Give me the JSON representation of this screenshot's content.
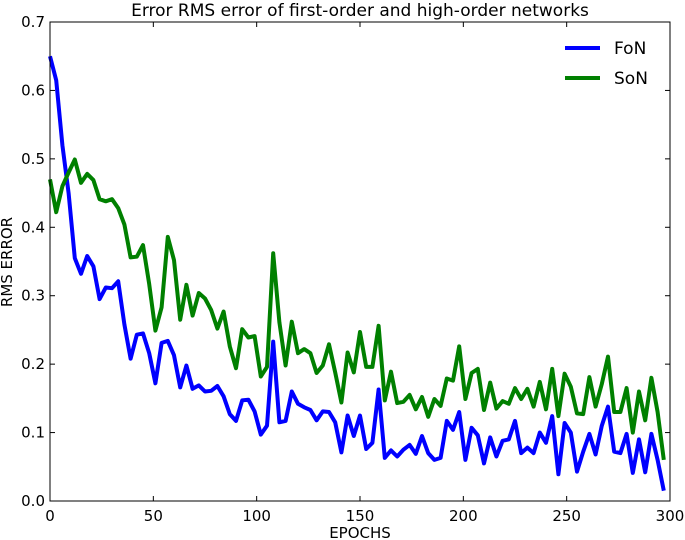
{
  "chart_data": {
    "type": "line",
    "title": "Error RMS error of first-order and high-order networks",
    "xlabel": "EPOCHS",
    "ylabel": "RMS ERROR",
    "xlim": [
      0,
      300
    ],
    "ylim": [
      0,
      0.7
    ],
    "xticks": [
      "0",
      "50",
      "100",
      "150",
      "200",
      "250",
      "300"
    ],
    "yticks": [
      "0.0",
      "0.1",
      "0.2",
      "0.3",
      "0.4",
      "0.5",
      "0.6",
      "0.7"
    ],
    "legend": "top-right",
    "grid": false,
    "x": [
      0,
      3,
      6,
      9,
      12,
      15,
      18,
      21,
      24,
      27,
      30,
      33,
      36,
      39,
      42,
      45,
      48,
      51,
      54,
      57,
      60,
      63,
      66,
      69,
      72,
      75,
      78,
      81,
      84,
      87,
      90,
      93,
      96,
      99,
      102,
      105,
      108,
      111,
      114,
      117,
      120,
      123,
      126,
      129,
      132,
      135,
      138,
      141,
      144,
      147,
      150,
      153,
      156,
      159,
      162,
      165,
      168,
      171,
      174,
      177,
      180,
      183,
      186,
      189,
      192,
      195,
      198,
      201,
      204,
      207,
      210,
      213,
      216,
      219,
      222,
      225,
      228,
      231,
      234,
      237,
      240,
      243,
      246,
      249,
      252,
      255,
      258,
      261,
      264,
      267,
      270,
      273,
      276,
      279,
      282,
      285,
      288,
      291,
      294,
      297
    ],
    "series": [
      {
        "name": "FoN",
        "color": "#0000ff",
        "values": [
          0.65,
          0.615,
          0.52,
          0.45,
          0.355,
          0.332,
          0.358,
          0.343,
          0.295,
          0.312,
          0.311,
          0.321,
          0.258,
          0.208,
          0.243,
          0.245,
          0.216,
          0.172,
          0.231,
          0.234,
          0.213,
          0.166,
          0.198,
          0.164,
          0.169,
          0.16,
          0.161,
          0.168,
          0.153,
          0.127,
          0.117,
          0.147,
          0.148,
          0.131,
          0.097,
          0.11,
          0.233,
          0.115,
          0.117,
          0.16,
          0.142,
          0.137,
          0.133,
          0.118,
          0.131,
          0.13,
          0.115,
          0.071,
          0.125,
          0.095,
          0.125,
          0.076,
          0.085,
          0.163,
          0.063,
          0.074,
          0.065,
          0.075,
          0.082,
          0.069,
          0.095,
          0.07,
          0.06,
          0.063,
          0.117,
          0.104,
          0.13,
          0.06,
          0.107,
          0.096,
          0.055,
          0.093,
          0.065,
          0.088,
          0.09,
          0.117,
          0.07,
          0.078,
          0.07,
          0.1,
          0.085,
          0.124,
          0.039,
          0.114,
          0.1,
          0.043,
          0.072,
          0.098,
          0.068,
          0.11,
          0.138,
          0.072,
          0.07,
          0.098,
          0.041,
          0.09,
          0.042,
          0.098,
          0.06,
          0.015
        ]
      },
      {
        "name": "SoN",
        "color": "#008000",
        "values": [
          0.47,
          0.422,
          0.46,
          0.48,
          0.499,
          0.465,
          0.478,
          0.469,
          0.441,
          0.438,
          0.441,
          0.428,
          0.404,
          0.356,
          0.357,
          0.374,
          0.317,
          0.249,
          0.283,
          0.386,
          0.352,
          0.265,
          0.316,
          0.271,
          0.304,
          0.296,
          0.279,
          0.252,
          0.277,
          0.226,
          0.194,
          0.251,
          0.239,
          0.241,
          0.182,
          0.196,
          0.362,
          0.261,
          0.198,
          0.262,
          0.216,
          0.222,
          0.216,
          0.187,
          0.198,
          0.229,
          0.188,
          0.144,
          0.217,
          0.188,
          0.247,
          0.196,
          0.196,
          0.256,
          0.147,
          0.189,
          0.143,
          0.145,
          0.155,
          0.134,
          0.152,
          0.123,
          0.149,
          0.139,
          0.179,
          0.176,
          0.226,
          0.149,
          0.187,
          0.193,
          0.133,
          0.173,
          0.135,
          0.146,
          0.142,
          0.165,
          0.149,
          0.164,
          0.138,
          0.174,
          0.134,
          0.193,
          0.124,
          0.186,
          0.167,
          0.128,
          0.127,
          0.181,
          0.138,
          0.171,
          0.211,
          0.13,
          0.13,
          0.165,
          0.1,
          0.16,
          0.118,
          0.18,
          0.13,
          0.06
        ]
      }
    ]
  }
}
